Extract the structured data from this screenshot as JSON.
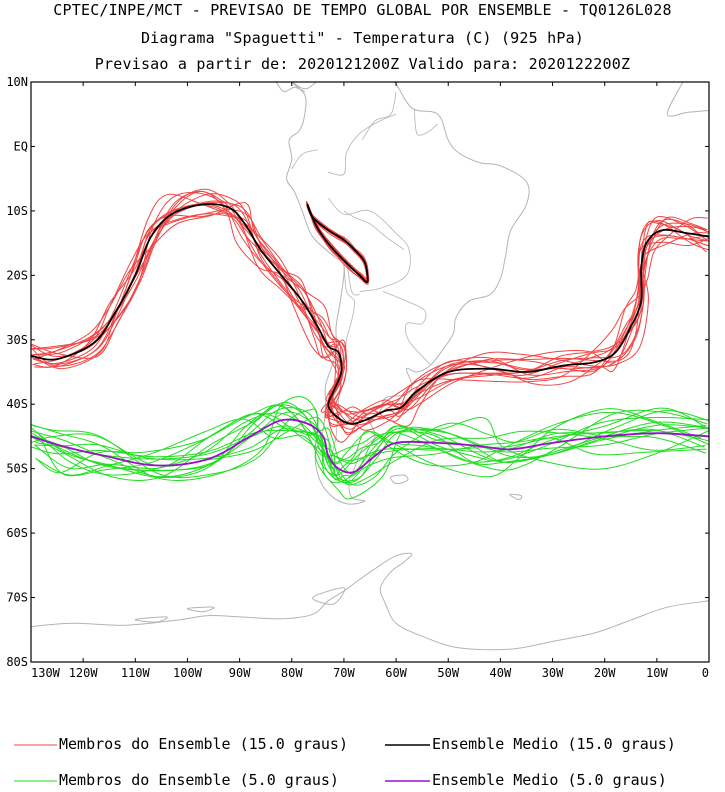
{
  "header": {
    "line1": "CPTEC/INPE/MCT - PREVISAO DE TEMPO GLOBAL POR ENSEMBLE - TQ0126L028",
    "line2": "Diagrama \"Spaguetti\" - Temperatura (C) (925 hPa)",
    "line3": "Previsao a partir de: 2020121200Z  Valido para: 2020122200Z"
  },
  "map": {
    "lon_range": [
      -130,
      0
    ],
    "lat_range": [
      -80,
      10
    ],
    "lat_labels": [
      "10N",
      "EQ",
      "10S",
      "20S",
      "30S",
      "40S",
      "50S",
      "60S",
      "70S",
      "80S"
    ],
    "lon_labels": [
      "130W",
      "120W",
      "110W",
      "100W",
      "90W",
      "80W",
      "70W",
      "60W",
      "50W",
      "40W",
      "30W",
      "20W",
      "10W",
      "0"
    ],
    "coastline_color": "#b4b4b4"
  },
  "colors": {
    "member_15": "#f04545",
    "mean_15": "#000000",
    "member_5": "#22dd22",
    "mean_5": "#9a10c8"
  },
  "legend": {
    "member_15_label": "Membros do Ensemble (15.0 graus)",
    "mean_15_label": "Ensemble Medio (15.0 graus)",
    "member_5_label": "Membros do Ensemble (5.0 graus)",
    "mean_5_label": "Ensemble Medio (5.0 graus)"
  },
  "isotherms": {
    "mean_15_main": [
      [
        -130,
        -32.5
      ],
      [
        -125,
        -33
      ],
      [
        -118,
        -30.5
      ],
      [
        -114,
        -26
      ],
      [
        -110,
        -20
      ],
      [
        -107,
        -14
      ],
      [
        -103,
        -10.5
      ],
      [
        -97,
        -9
      ],
      [
        -92,
        -9.5
      ],
      [
        -89,
        -12
      ],
      [
        -86,
        -16
      ],
      [
        -82,
        -20
      ],
      [
        -78,
        -24
      ],
      [
        -75,
        -28
      ],
      [
        -73,
        -31
      ],
      [
        -71,
        -32
      ],
      [
        -70.5,
        -35
      ],
      [
        -72,
        -38
      ],
      [
        -73,
        -40
      ],
      [
        -72,
        -41.5
      ],
      [
        -69,
        -43
      ],
      [
        -66,
        -42.5
      ],
      [
        -62,
        -41
      ],
      [
        -59,
        -40.5
      ],
      [
        -56,
        -38
      ],
      [
        -50,
        -35
      ],
      [
        -42,
        -34.5
      ],
      [
        -35,
        -35
      ],
      [
        -28,
        -34
      ],
      [
        -22,
        -33.5
      ],
      [
        -18,
        -32
      ],
      [
        -15,
        -28
      ],
      [
        -13,
        -24
      ],
      [
        -13,
        -19
      ],
      [
        -12,
        -15
      ],
      [
        -9,
        -13
      ],
      [
        -4,
        -13.5
      ],
      [
        0,
        -14
      ]
    ],
    "mean_15_andes": [
      [
        -77,
        -9
      ],
      [
        -76,
        -11
      ],
      [
        -73,
        -13
      ],
      [
        -70,
        -14.5
      ],
      [
        -68,
        -16
      ],
      [
        -66,
        -18
      ],
      [
        -65.5,
        -21
      ],
      [
        -67,
        -20
      ],
      [
        -69,
        -18.5
      ],
      [
        -72,
        -16
      ],
      [
        -74,
        -14
      ],
      [
        -75.5,
        -12
      ]
    ],
    "mean_5_main": [
      [
        -130,
        -45
      ],
      [
        -124,
        -46.5
      ],
      [
        -116,
        -48
      ],
      [
        -106,
        -49.5
      ],
      [
        -96,
        -48.5
      ],
      [
        -88,
        -45
      ],
      [
        -82,
        -42.5
      ],
      [
        -77,
        -43
      ],
      [
        -74,
        -45
      ],
      [
        -73,
        -48
      ],
      [
        -71,
        -50
      ],
      [
        -68,
        -50.5
      ],
      [
        -64,
        -48
      ],
      [
        -60,
        -46
      ],
      [
        -52,
        -46
      ],
      [
        -44,
        -46.5
      ],
      [
        -38,
        -47
      ],
      [
        -30,
        -46
      ],
      [
        -20,
        -45
      ],
      [
        -10,
        -44.5
      ],
      [
        0,
        -45
      ]
    ]
  }
}
